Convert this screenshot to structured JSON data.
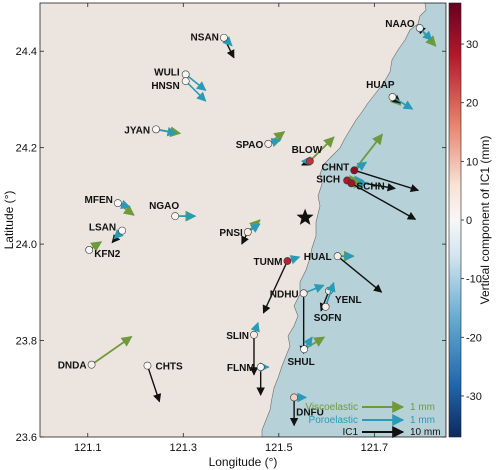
{
  "map": {
    "xlabel": "Longitude (°)",
    "ylabel": "Latitude (°)",
    "x_ticks": [
      {
        "value": 121.1,
        "label": "121.1"
      },
      {
        "value": 121.3,
        "label": "121.3"
      },
      {
        "value": 121.5,
        "label": "121.5"
      },
      {
        "value": 121.7,
        "label": "121.7"
      }
    ],
    "y_ticks": [
      {
        "value": 24.4,
        "label": "24.4"
      },
      {
        "value": 24.2,
        "label": "24.2"
      },
      {
        "value": 24.0,
        "label": "24.0"
      },
      {
        "value": 23.8,
        "label": "23.8"
      },
      {
        "value": 23.6,
        "label": "23.6"
      }
    ],
    "xlim": [
      121.0,
      121.85
    ],
    "ylim": [
      23.6,
      24.5
    ],
    "land_color": "#ece4de",
    "sea_color": "#b6d2d8",
    "epicenter": {
      "lon": 121.555,
      "lat": 24.055,
      "symbol": "star"
    },
    "stations": [
      {
        "name": "NAAO",
        "lon": 121.795,
        "lat": 24.448,
        "vert": -2,
        "vis": [
          0.4,
          -0.45
        ],
        "poro": [
          0.3,
          -0.3
        ],
        "ic1": [
          -0.5,
          0.5
        ]
      },
      {
        "name": "NSAN",
        "lon": 121.385,
        "lat": 24.428,
        "vert": 0,
        "vis": [
          0,
          0
        ],
        "poro": [
          0.2,
          -0.2
        ],
        "ic1": [
          2.5,
          -5
        ]
      },
      {
        "name": "WULI",
        "lon": 121.305,
        "lat": 24.352,
        "vert": 0,
        "vis": [
          0,
          0
        ],
        "poro": [
          0.5,
          -0.4
        ],
        "ic1": [
          0,
          0
        ]
      },
      {
        "name": "HNSN",
        "lon": 121.305,
        "lat": 24.338,
        "vert": 1,
        "vis": [
          0,
          0
        ],
        "poro": [
          0.5,
          -0.5
        ],
        "ic1": [
          0,
          0
        ]
      },
      {
        "name": "HUAP",
        "lon": 121.738,
        "lat": 24.305,
        "vert": 2,
        "vis": [
          0.2,
          -0.2
        ],
        "poro": [
          0.5,
          -0.3
        ],
        "ic1": [
          2,
          -1.5
        ]
      },
      {
        "name": "JYAN",
        "lon": 121.243,
        "lat": 24.238,
        "vert": 0,
        "vis": [
          0.6,
          -0.1
        ],
        "poro": [
          0.5,
          -0.1
        ],
        "ic1": [
          0,
          0
        ]
      },
      {
        "name": "SPAO",
        "lon": 121.478,
        "lat": 24.208,
        "vert": 3,
        "vis": [
          0.4,
          0.3
        ],
        "poro": [
          0.3,
          0.1
        ],
        "ic1": [
          0,
          0
        ]
      },
      {
        "name": "BLOW",
        "lon": 121.565,
        "lat": 24.172,
        "vert": 25,
        "vis": [
          0.6,
          0.6
        ],
        "poro": [
          -0.2,
          0
        ],
        "ic1": [
          -2,
          -1
        ]
      },
      {
        "name": "CHNT",
        "lon": 121.658,
        "lat": 24.153,
        "vert": 32,
        "vis": [
          0.7,
          0.9
        ],
        "poro": [
          0.3,
          0.2
        ],
        "ic1": [
          16,
          -5
        ]
      },
      {
        "name": "SICH",
        "lon": 121.643,
        "lat": 24.132,
        "vert": 28,
        "vis": [
          0.3,
          0
        ],
        "poro": [
          0.4,
          0
        ],
        "ic1": [
          12,
          -2
        ]
      },
      {
        "name": "SCHN",
        "lon": 121.652,
        "lat": 24.126,
        "vert": 30,
        "vis": [
          0.3,
          0
        ],
        "poro": [
          0.4,
          0
        ],
        "ic1": [
          16,
          -9
        ]
      },
      {
        "name": "MFEN",
        "lon": 121.163,
        "lat": 24.085,
        "vert": 0,
        "vis": [
          0.4,
          -0.3
        ],
        "poro": [
          0.3,
          -0.1
        ],
        "ic1": [
          0,
          0
        ]
      },
      {
        "name": "NGAO",
        "lon": 121.283,
        "lat": 24.058,
        "vert": 1,
        "vis": [
          0.5,
          0
        ],
        "poro": [
          0.5,
          0
        ],
        "ic1": [
          0,
          0
        ]
      },
      {
        "name": "LSAN",
        "lon": 121.172,
        "lat": 24.028,
        "vert": 0,
        "vis": [
          0,
          0
        ],
        "poro": [
          -0.2,
          -0.2
        ],
        "ic1": [
          -2.5,
          -3
        ]
      },
      {
        "name": "PNSI",
        "lon": 121.435,
        "lat": 24.025,
        "vert": 4,
        "vis": [
          0.3,
          0.3
        ],
        "poro": [
          0.3,
          0.2
        ],
        "ic1": [
          -1.5,
          -3
        ]
      },
      {
        "name": "KFN2",
        "lon": 121.103,
        "lat": 23.988,
        "vert": 0,
        "vis": [
          0.3,
          0.2
        ],
        "poro": [
          0,
          0
        ],
        "ic1": [
          0,
          0
        ]
      },
      {
        "name": "HUAL",
        "lon": 121.623,
        "lat": 23.975,
        "vert": 3,
        "vis": [
          0.4,
          0
        ],
        "poro": [
          0.4,
          0
        ],
        "ic1": [
          11,
          -9
        ]
      },
      {
        "name": "TUNM",
        "lon": 121.518,
        "lat": 23.965,
        "vert": 27,
        "vis": [
          0,
          0
        ],
        "poro": [
          0.3,
          0.1
        ],
        "ic1": [
          -6,
          -13
        ]
      },
      {
        "name": "NDHU",
        "lon": 121.552,
        "lat": 23.898,
        "vert": 3,
        "vis": [
          0,
          0
        ],
        "poro": [
          0.5,
          0.2
        ],
        "ic1": [
          0,
          -15
        ]
      },
      {
        "name": "YENL",
        "lon": 121.605,
        "lat": 23.903,
        "vert": 5,
        "vis": [
          0,
          0
        ],
        "poro": [
          0,
          0
        ],
        "ic1": [
          -2,
          -5
        ]
      },
      {
        "name": "SOFN",
        "lon": 121.598,
        "lat": 23.87,
        "vert": 3,
        "vis": [
          0,
          0
        ],
        "poro": [
          0.2,
          0.6
        ],
        "ic1": [
          0,
          0
        ]
      },
      {
        "name": "SHUL",
        "lon": 121.553,
        "lat": 23.782,
        "vert": 0,
        "vis": [
          0.5,
          0.3
        ],
        "poro": [
          0.2,
          0.3
        ],
        "ic1": [
          0,
          0
        ]
      },
      {
        "name": "SLIN",
        "lon": 121.448,
        "lat": 23.812,
        "vert": 4,
        "vis": [
          0,
          0
        ],
        "poro": [
          0.1,
          0.3
        ],
        "ic1": [
          0,
          -10
        ]
      },
      {
        "name": "FLNM",
        "lon": 121.462,
        "lat": 23.745,
        "vert": 0,
        "vis": [
          0,
          0
        ],
        "poro": [
          0.2,
          0
        ],
        "ic1": [
          0,
          -7
        ]
      },
      {
        "name": "DNDA",
        "lon": 121.108,
        "lat": 23.75,
        "vert": 2,
        "vis": [
          1.0,
          0.7
        ],
        "poro": [
          0,
          0
        ],
        "ic1": [
          0,
          0
        ]
      },
      {
        "name": "CHTS",
        "lon": 121.225,
        "lat": 23.748,
        "vert": 0,
        "vis": [
          0,
          0
        ],
        "poro": [
          0,
          0
        ],
        "ic1": [
          3,
          -9
        ]
      },
      {
        "name": "DNFU",
        "lon": 121.532,
        "lat": 23.682,
        "vert": 8,
        "vis": [
          0,
          0
        ],
        "poro": [
          0.3,
          0
        ],
        "ic1": [
          0,
          -7
        ]
      }
    ],
    "labels": [
      {
        "station": "NAAO",
        "text": "NAAO",
        "anchor": "end",
        "dx": -5,
        "dy": -1
      },
      {
        "station": "NSAN",
        "text": "NSAN",
        "anchor": "end",
        "dx": -5,
        "dy": 3
      },
      {
        "station": "WULI",
        "text": "WULI",
        "anchor": "end",
        "dx": -6,
        "dy": 1
      },
      {
        "station": "HNSN",
        "text": "HNSN",
        "anchor": "end",
        "dx": -6,
        "dy": 8
      },
      {
        "station": "HUAP",
        "text": "HUAP",
        "anchor": "end",
        "dx": 2,
        "dy": -9
      },
      {
        "station": "JYAN",
        "text": "JYAN",
        "anchor": "end",
        "dx": -6,
        "dy": 4
      },
      {
        "station": "SPAO",
        "text": "SPAO",
        "anchor": "end",
        "dx": -5,
        "dy": 4
      },
      {
        "station": "BLOW",
        "text": "BLOW",
        "anchor": "middle",
        "dx": -3,
        "dy": -8
      },
      {
        "station": "CHNT",
        "text": "CHNT",
        "anchor": "end",
        "dx": -5,
        "dy": 0
      },
      {
        "station": "SICH",
        "text": "SICH",
        "anchor": "end",
        "dx": -7,
        "dy": 2
      },
      {
        "station": "SCHN",
        "text": "SCHN",
        "anchor": "start",
        "dx": 5,
        "dy": 6
      },
      {
        "station": "MFEN",
        "text": "MFEN",
        "anchor": "end",
        "dx": -5,
        "dy": 0
      },
      {
        "station": "NGAO",
        "text": "NGAO",
        "anchor": "end",
        "dx": 4,
        "dy": -7
      },
      {
        "station": "LSAN",
        "text": "LSAN",
        "anchor": "end",
        "dx": -6,
        "dy": 0
      },
      {
        "station": "PNSI",
        "text": "PNSI",
        "anchor": "end",
        "dx": -5,
        "dy": 4
      },
      {
        "station": "KFN2",
        "text": "KFN2",
        "anchor": "start",
        "dx": 5,
        "dy": 7
      },
      {
        "station": "HUAL",
        "text": "HUAL",
        "anchor": "end",
        "dx": -6,
        "dy": 4
      },
      {
        "station": "TUNM",
        "text": "TUNM",
        "anchor": "end",
        "dx": -5,
        "dy": 4
      },
      {
        "station": "NDHU",
        "text": "NDHU",
        "anchor": "end",
        "dx": -5,
        "dy": 4
      },
      {
        "station": "YENL",
        "text": "YENL",
        "anchor": "start",
        "dx": 6,
        "dy": 12
      },
      {
        "station": "SOFN",
        "text": "SOFN",
        "anchor": "middle",
        "dx": 2,
        "dy": 14
      },
      {
        "station": "SHUL",
        "text": "SHUL",
        "anchor": "middle",
        "dx": -3,
        "dy": 16
      },
      {
        "station": "SLIN",
        "text": "SLIN",
        "anchor": "end",
        "dx": -5,
        "dy": 4
      },
      {
        "station": "FLNM",
        "text": "FLNM",
        "anchor": "end",
        "dx": -6,
        "dy": 4
      },
      {
        "station": "DNDA",
        "text": "DNDA",
        "anchor": "end",
        "dx": -5,
        "dy": 4
      },
      {
        "station": "CHTS",
        "text": "CHTS",
        "anchor": "start",
        "dx": 8,
        "dy": 4
      },
      {
        "station": "DNFU",
        "text": "DNFU",
        "anchor": "start",
        "dx": 2,
        "dy": 18
      }
    ]
  },
  "colorbar": {
    "label": "Vertical component of IC1 (mm)",
    "ticks": [
      {
        "value": 30,
        "label": "30"
      },
      {
        "value": 20,
        "label": "20"
      },
      {
        "value": 10,
        "label": "10"
      },
      {
        "value": 0,
        "label": "0"
      },
      {
        "value": -10,
        "label": "-10"
      },
      {
        "value": -20,
        "label": "-20"
      },
      {
        "value": -30,
        "label": "-30"
      }
    ],
    "range": [
      -37,
      37
    ]
  },
  "legend": {
    "items": [
      {
        "name": "Viscoelastic",
        "scale": "1 mm",
        "color": "#6f9a3c"
      },
      {
        "name": "Poroelastic",
        "scale": "1 mm",
        "color": "#2a9bb6"
      },
      {
        "name": "IC1",
        "scale": "10 mm",
        "color": "#111111"
      }
    ]
  },
  "colors": {
    "viscoelastic": "#6f9a3c",
    "poroelastic": "#2a9bb6",
    "ic1": "#111111"
  }
}
